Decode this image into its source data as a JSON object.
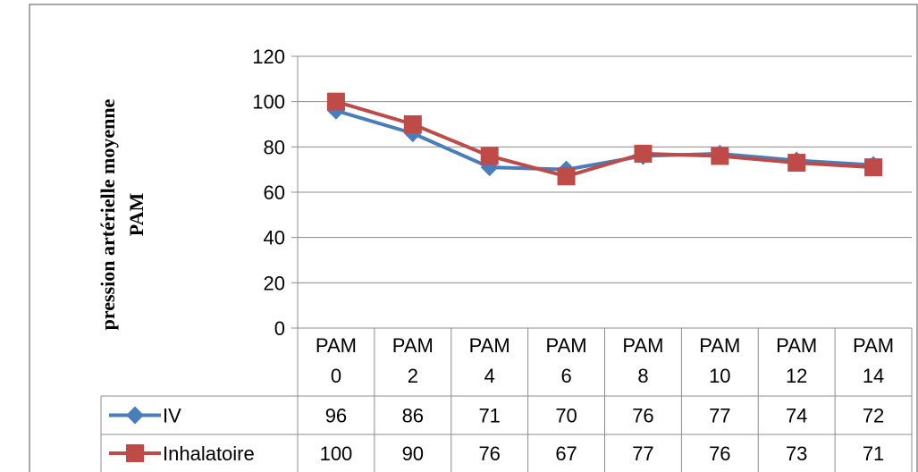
{
  "chart_data": {
    "type": "line",
    "title": "",
    "xlabel": "",
    "ylabel": [
      "pression artérielle moyenne",
      "PAM"
    ],
    "ylim": [
      0,
      120
    ],
    "yticks": [
      0,
      20,
      40,
      60,
      80,
      100,
      120
    ],
    "grid": true,
    "legend": "data-table",
    "categories": [
      [
        "PAM",
        "0"
      ],
      [
        "PAM",
        "2"
      ],
      [
        "PAM",
        "4"
      ],
      [
        "PAM",
        "6"
      ],
      [
        "PAM",
        "8"
      ],
      [
        "PAM",
        "10"
      ],
      [
        "PAM",
        "12"
      ],
      [
        "PAM",
        "14"
      ]
    ],
    "series": [
      {
        "name": "IV",
        "color": "#4a7ebb",
        "marker": "diamond",
        "values": [
          96,
          86,
          71,
          70,
          76,
          77,
          74,
          72
        ]
      },
      {
        "name": "Inhalatoire",
        "color": "#be4b48",
        "marker": "square",
        "values": [
          100,
          90,
          76,
          67,
          77,
          76,
          73,
          71
        ]
      }
    ]
  }
}
